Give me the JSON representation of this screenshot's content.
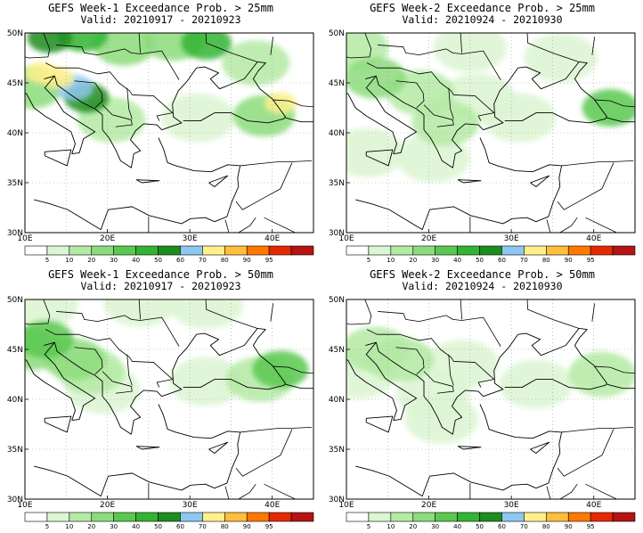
{
  "panels": [
    {
      "title": "GEFS Week-1 Exceedance Prob. > 25mm",
      "valid_label": "Valid:",
      "valid_range": "20210917 - 20210923",
      "threshold_mm": 25,
      "week": 1,
      "field": [
        {
          "lon": 12.0,
          "lat": 46.0,
          "level": 8
        },
        {
          "lon": 14.0,
          "lat": 45.5,
          "level": 8
        },
        {
          "lon": 16.0,
          "lat": 44.5,
          "level": 7
        },
        {
          "lon": 17.5,
          "lat": 43.5,
          "level": 6
        },
        {
          "lon": 10.8,
          "lat": 44.5,
          "level": 3
        },
        {
          "lon": 13.0,
          "lat": 49.5,
          "level": 6
        },
        {
          "lon": 17.0,
          "lat": 49.8,
          "level": 5
        },
        {
          "lon": 22.0,
          "lat": 48.8,
          "level": 3
        },
        {
          "lon": 28.0,
          "lat": 49.3,
          "level": 3
        },
        {
          "lon": 32.0,
          "lat": 49.0,
          "level": 5
        },
        {
          "lon": 38.0,
          "lat": 47.0,
          "level": 2
        },
        {
          "lon": 41.0,
          "lat": 43.0,
          "level": 8
        },
        {
          "lon": 39.0,
          "lat": 41.7,
          "level": 3
        },
        {
          "lon": 31.0,
          "lat": 41.5,
          "level": 1
        },
        {
          "lon": 20.5,
          "lat": 41.3,
          "level": 2
        }
      ]
    },
    {
      "title": "GEFS Week-2 Exceedance Prob. > 25mm",
      "valid_label": "Valid:",
      "valid_range": "20210924 - 20210930",
      "threshold_mm": 25,
      "week": 2,
      "field": [
        {
          "lon": 13.5,
          "lat": 45.5,
          "level": 3
        },
        {
          "lon": 11.0,
          "lat": 48.5,
          "level": 2
        },
        {
          "lon": 19.0,
          "lat": 44.0,
          "level": 2
        },
        {
          "lon": 22.0,
          "lat": 41.0,
          "level": 2
        },
        {
          "lon": 20.5,
          "lat": 37.5,
          "level": 1
        },
        {
          "lon": 26.0,
          "lat": 43.5,
          "level": 1
        },
        {
          "lon": 31.0,
          "lat": 41.5,
          "level": 1
        },
        {
          "lon": 42.0,
          "lat": 42.5,
          "level": 4
        },
        {
          "lon": 36.0,
          "lat": 47.5,
          "level": 1
        },
        {
          "lon": 25.0,
          "lat": 48.5,
          "level": 1
        },
        {
          "lon": 12.5,
          "lat": 38.0,
          "level": 1
        }
      ]
    },
    {
      "title": "GEFS Week-1 Exceedance Prob. > 50mm",
      "valid_label": "Valid:",
      "valid_range": "20210917 - 20210923",
      "threshold_mm": 50,
      "week": 1,
      "field": [
        {
          "lon": 12.5,
          "lat": 46.0,
          "level": 4
        },
        {
          "lon": 11.0,
          "lat": 45.0,
          "level": 3
        },
        {
          "lon": 16.0,
          "lat": 44.0,
          "level": 3
        },
        {
          "lon": 18.0,
          "lat": 42.8,
          "level": 2
        },
        {
          "lon": 19.5,
          "lat": 41.0,
          "level": 1
        },
        {
          "lon": 12.0,
          "lat": 49.5,
          "level": 1
        },
        {
          "lon": 24.0,
          "lat": 49.7,
          "level": 1
        },
        {
          "lon": 32.0,
          "lat": 49.5,
          "level": 1
        },
        {
          "lon": 41.0,
          "lat": 43.0,
          "level": 4
        },
        {
          "lon": 38.5,
          "lat": 42.0,
          "level": 2
        },
        {
          "lon": 32.0,
          "lat": 41.8,
          "level": 1
        }
      ]
    },
    {
      "title": "GEFS Week-2 Exceedance Prob. > 50mm",
      "valid_label": "Valid:",
      "valid_range": "20210924 - 20210930",
      "threshold_mm": 50,
      "week": 2,
      "field": [
        {
          "lon": 13.5,
          "lat": 45.0,
          "level": 2
        },
        {
          "lon": 16.5,
          "lat": 44.0,
          "level": 2
        },
        {
          "lon": 20.5,
          "lat": 40.5,
          "level": 1
        },
        {
          "lon": 21.5,
          "lat": 38.0,
          "level": 1
        },
        {
          "lon": 11.5,
          "lat": 42.5,
          "level": 1
        },
        {
          "lon": 24.0,
          "lat": 43.5,
          "level": 1
        },
        {
          "lon": 41.0,
          "lat": 42.5,
          "level": 2
        },
        {
          "lon": 33.0,
          "lat": 41.5,
          "level": 1
        }
      ]
    }
  ],
  "map": {
    "lon_range": [
      10,
      45
    ],
    "lat_range": [
      30,
      50
    ],
    "x_ticks": [
      "10E",
      "20E",
      "30E",
      "40E"
    ],
    "y_ticks": [
      "30N",
      "35N",
      "40N",
      "45N",
      "50N"
    ],
    "grid": "dotted"
  },
  "colorbar": {
    "labels": [
      "5",
      "10",
      "20",
      "30",
      "40",
      "50",
      "60",
      "70",
      "80",
      "90",
      "95"
    ],
    "colors": [
      "#ffffff",
      "#dcf5d2",
      "#b4eaa4",
      "#8cdc7c",
      "#5ac850",
      "#32b432",
      "#1e8c1e",
      "#8cc8f0",
      "#fff08c",
      "#ffbe3c",
      "#ff7800",
      "#e62800",
      "#b41414"
    ]
  }
}
